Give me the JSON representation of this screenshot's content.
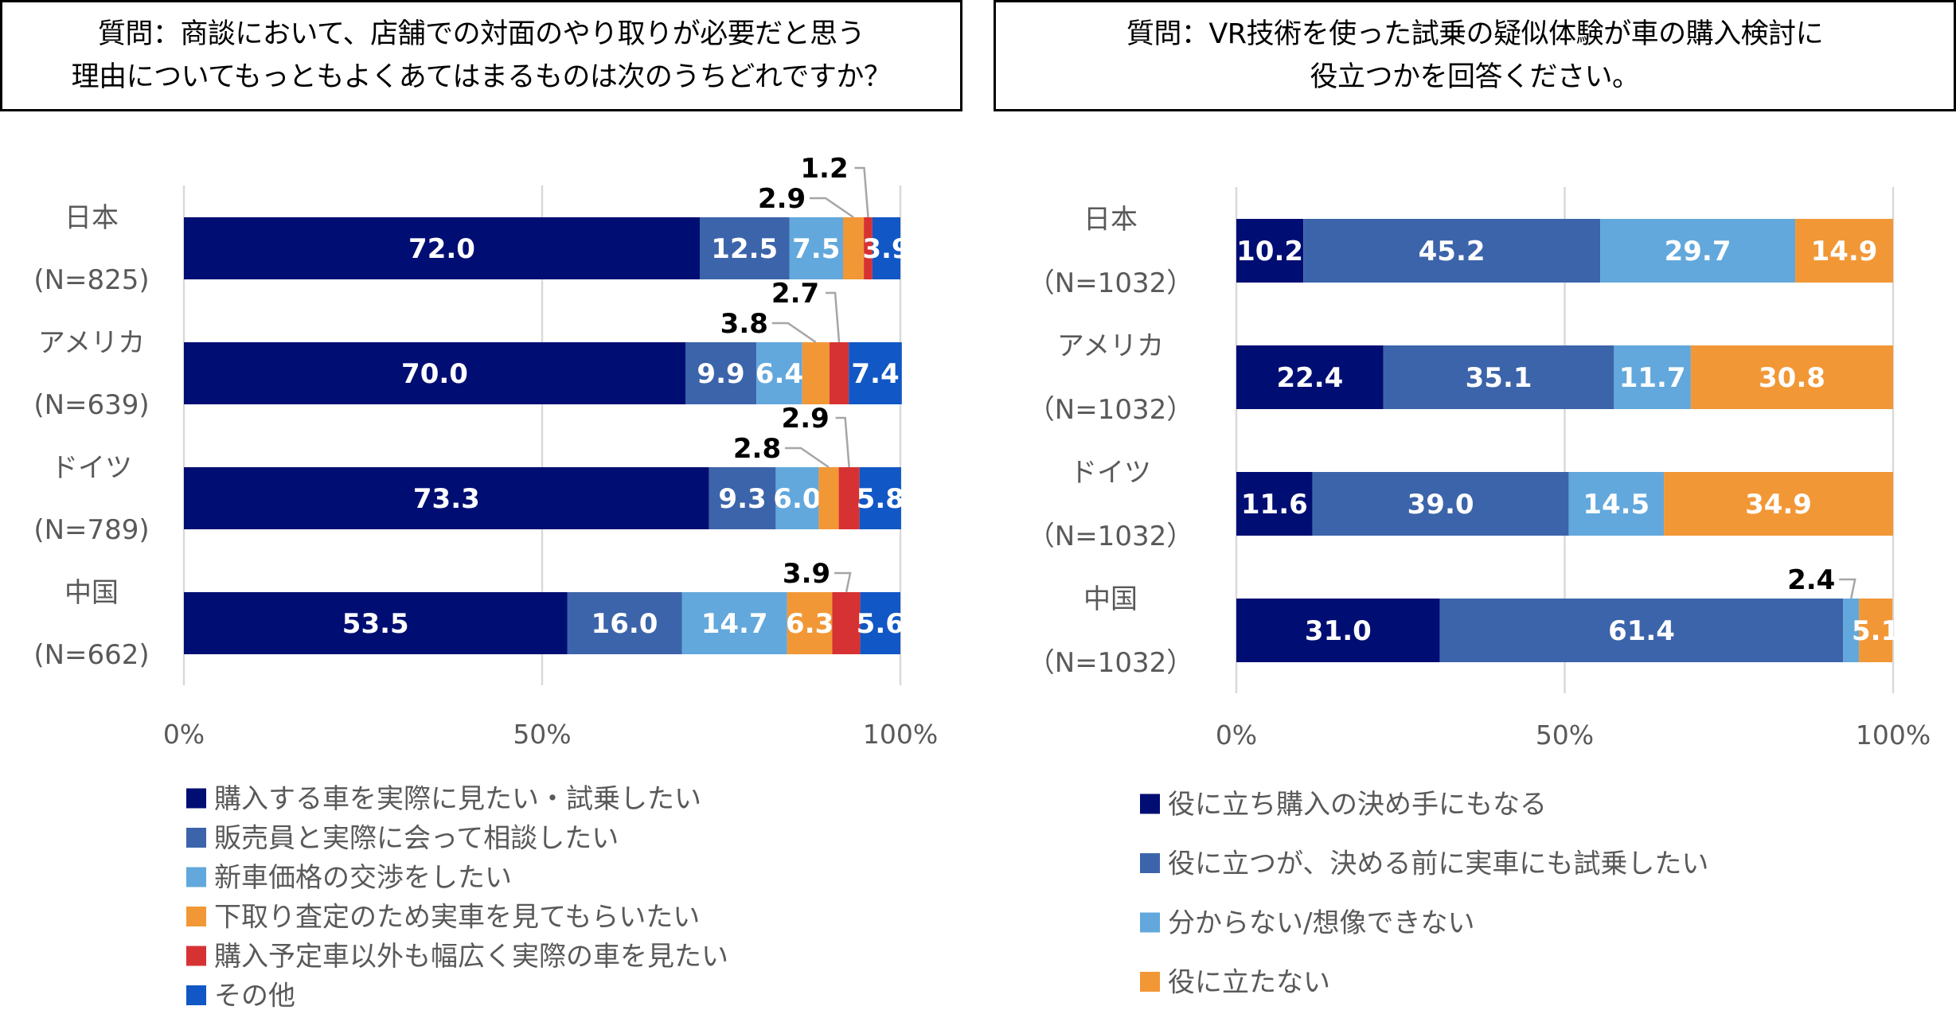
{
  "colors": {
    "navy": "#000E73",
    "blue": "#3C64AA",
    "light_blue": "#62A8DC",
    "orange": "#F29736",
    "red": "#D73233",
    "bright_blue": "#1157C5",
    "grid": "#D9D9D9",
    "leader": "#A6A6A6"
  },
  "left_title": {
    "lines": [
      "質問：商談において、店舗での対面のやり取りが必要だと思う",
      "理由についてもっともよくあてはまるものは次のうちどれですか？"
    ]
  },
  "right_title": {
    "lines": [
      "質問：VR技術を使った試乗の疑似体験が車の購入検討に",
      "役立つかを回答ください。"
    ]
  },
  "chart_data": [
    {
      "type": "bar",
      "orientation": "horizontal",
      "stacked": "100%",
      "title": "質問：商談において、店舗での対面のやり取りが必要だと思う理由についてもっともよくあてはまるものは次のうちどれですか？",
      "categories": [
        "日本",
        "アメリカ",
        "ドイツ",
        "中国"
      ],
      "category_n": [
        "(N=825)",
        "(N=639)",
        "(N=789)",
        "(N=662)"
      ],
      "xlim": [
        0,
        100
      ],
      "xticks": [
        "0%",
        "50%",
        "100%"
      ],
      "grid": true,
      "legend_position": "bottom",
      "series": [
        {
          "name": "購入する車を実際に見たい・試乗したい",
          "color": "#000E73",
          "values": [
            72.0,
            70.0,
            73.3,
            53.5
          ]
        },
        {
          "name": "販売員と実際に会って相談したい",
          "color": "#3C64AA",
          "values": [
            12.5,
            9.9,
            9.3,
            16.0
          ]
        },
        {
          "name": "新車価格の交渉をしたい",
          "color": "#62A8DC",
          "values": [
            7.5,
            6.4,
            6.0,
            14.7
          ]
        },
        {
          "name": "下取り査定のため実車を見てもらいたい",
          "color": "#F29736",
          "values": [
            2.9,
            3.8,
            2.8,
            6.3
          ]
        },
        {
          "name": "購入予定車以外も幅広く実際の車を見たい",
          "color": "#D73233",
          "values": [
            1.2,
            2.7,
            2.9,
            3.9
          ]
        },
        {
          "name": "その他",
          "color": "#1157C5",
          "values": [
            3.9,
            7.4,
            5.8,
            5.6
          ]
        }
      ]
    },
    {
      "type": "bar",
      "orientation": "horizontal",
      "stacked": "100%",
      "title": "質問：VR技術を使った試乗の疑似体験が車の購入検討に役立つかを回答ください。",
      "categories": [
        "日本",
        "アメリカ",
        "ドイツ",
        "中国"
      ],
      "category_n": [
        "（N=1032）",
        "（N=1032）",
        "（N=1032）",
        "（N=1032）"
      ],
      "xlim": [
        0,
        100
      ],
      "xticks": [
        "0%",
        "50%",
        "100%"
      ],
      "grid": true,
      "legend_position": "bottom",
      "series": [
        {
          "name": "役に立ち購入の決め手にもなる",
          "color": "#000E73",
          "values": [
            10.2,
            22.4,
            11.6,
            31.0
          ]
        },
        {
          "name": "役に立つが、決める前に実車にも試乗したい",
          "color": "#3C64AA",
          "values": [
            45.2,
            35.1,
            39.0,
            61.4
          ]
        },
        {
          "name": "分からない/想像できない",
          "color": "#62A8DC",
          "values": [
            29.7,
            11.7,
            14.5,
            2.4
          ]
        },
        {
          "name": "役に立たない",
          "color": "#F29736",
          "values": [
            14.9,
            30.8,
            34.9,
            5.1
          ]
        }
      ]
    }
  ]
}
